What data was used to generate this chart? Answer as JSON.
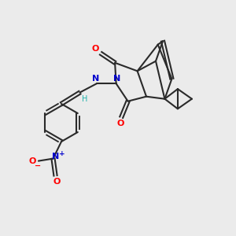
{
  "background_color": "#ebebeb",
  "bond_color": "#2a2a2a",
  "atom_colors": {
    "O": "#ff0000",
    "N": "#0000cd",
    "H_imine": "#20b2aa",
    "C": "#2a2a2a"
  },
  "bond_width": 1.5,
  "figsize": [
    3.0,
    3.0
  ],
  "dpi": 100
}
